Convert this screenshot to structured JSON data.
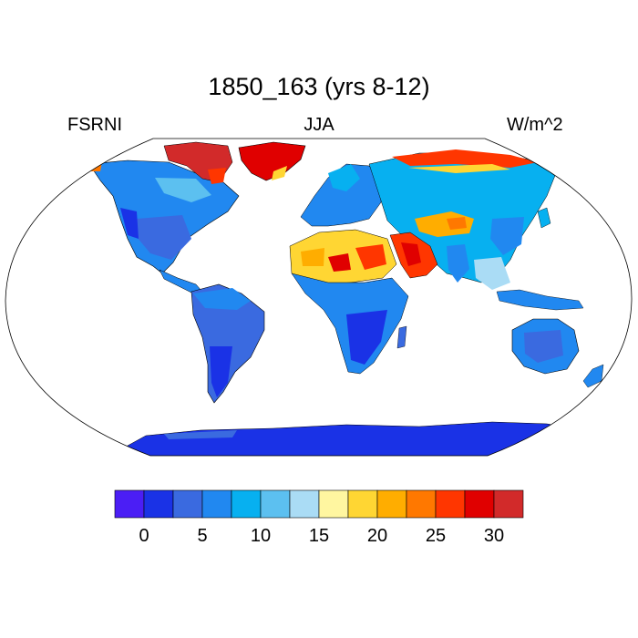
{
  "header": {
    "title": "1850_163 (yrs 8-12)",
    "left_label": "FSRNI",
    "center_label": "JJA",
    "right_label": "W/m^2"
  },
  "colorbar": {
    "colors": [
      "#4b1ef5",
      "#1a32e6",
      "#3a6ae0",
      "#2188f0",
      "#07b0f0",
      "#5cc0f0",
      "#aadcf5",
      "#fff6a0",
      "#ffd633",
      "#ffad00",
      "#ff7800",
      "#ff3600",
      "#e00000",
      "#d22a2a"
    ],
    "tick_labels": [
      "0",
      "5",
      "10",
      "15",
      "20",
      "25",
      "30"
    ]
  },
  "chart_data": {
    "type": "heatmap",
    "title": "1850_163 (yrs 8-12)",
    "variable": "FSRNI",
    "season": "JJA",
    "units": "W/m^2",
    "legend": "bottom",
    "levels": [
      -2.5,
      0,
      2.5,
      5,
      7.5,
      10,
      12.5,
      15,
      17.5,
      20,
      22.5,
      25,
      27.5,
      30
    ],
    "regions": [
      {
        "name": "Greenland",
        "value": 30
      },
      {
        "name": "Arctic coast",
        "value": 27
      },
      {
        "name": "Sahara",
        "value": 27
      },
      {
        "name": "Arabian Peninsula",
        "value": 28
      },
      {
        "name": "Central Asia",
        "value": 20
      },
      {
        "name": "Africa south",
        "value": 2
      },
      {
        "name": "South America",
        "value": 3
      },
      {
        "name": "North America",
        "value": 6
      },
      {
        "name": "Australia",
        "value": 6
      },
      {
        "name": "Antarctica",
        "value": 0
      }
    ]
  }
}
